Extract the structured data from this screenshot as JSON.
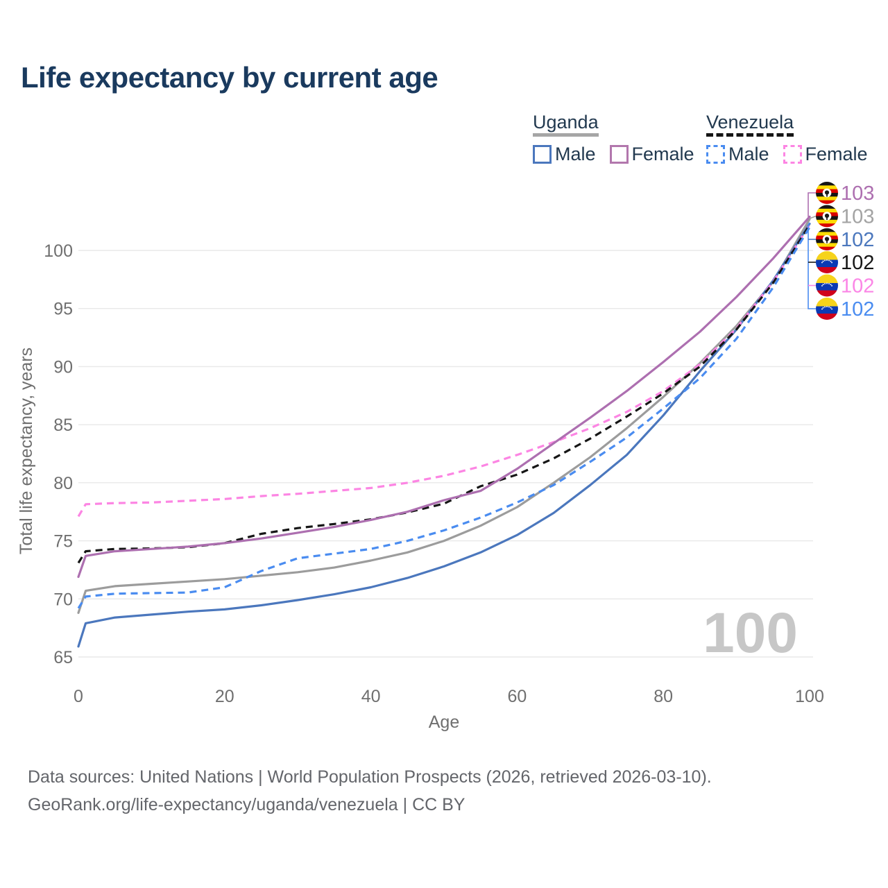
{
  "title": "Life expectancy by current age",
  "legend": {
    "groups": [
      {
        "name": "Uganda",
        "style": "solid",
        "underline_color": "#a6a6a6",
        "items": [
          {
            "label": "Male",
            "color": "#4b77bd",
            "dashed": false
          },
          {
            "label": "Female",
            "color": "#b277ad",
            "dashed": false
          }
        ]
      },
      {
        "name": "Venezuela",
        "style": "dashed",
        "underline_color": "#161616",
        "items": [
          {
            "label": "Male",
            "color": "#4a8cf0",
            "dashed": true
          },
          {
            "label": "Female",
            "color": "#fc85e3",
            "dashed": true
          }
        ]
      }
    ]
  },
  "chart_data": {
    "type": "line",
    "title": "Life expectancy by current age",
    "xlabel": "Age",
    "ylabel": "Total life expectancy, years",
    "xlim": [
      0,
      100
    ],
    "ylim": [
      63.5,
      104.5
    ],
    "xticks": [
      0,
      20,
      40,
      60,
      80,
      100
    ],
    "yticks": [
      65,
      70,
      75,
      80,
      85,
      90,
      95,
      100
    ],
    "grid": "horizontal",
    "gridline_color": "#e8e8e8",
    "watermark": "100",
    "watermark_color": "#c7c7c7",
    "x": [
      0,
      1,
      5,
      10,
      15,
      20,
      25,
      30,
      35,
      40,
      45,
      50,
      55,
      60,
      65,
      70,
      75,
      80,
      85,
      90,
      95,
      100
    ],
    "series": [
      {
        "id": "uganda-all",
        "name": "Uganda",
        "country": "Uganda",
        "sex": "All",
        "color": "#9c9c9c",
        "dashed": false,
        "values": [
          68.8,
          70.7,
          71.1,
          71.3,
          71.5,
          71.7,
          72.0,
          72.3,
          72.7,
          73.3,
          74.0,
          75.0,
          76.3,
          77.9,
          80.0,
          82.2,
          84.7,
          87.4,
          90.3,
          93.5,
          97.3,
          102.7
        ]
      },
      {
        "id": "uganda-male",
        "name": "Uganda Male",
        "country": "Uganda",
        "sex": "Male",
        "color": "#4b77bd",
        "dashed": false,
        "values": [
          65.9,
          67.9,
          68.4,
          68.65,
          68.9,
          69.1,
          69.45,
          69.9,
          70.4,
          71.0,
          71.8,
          72.8,
          74.0,
          75.5,
          77.4,
          79.8,
          82.4,
          85.8,
          89.6,
          93.2,
          97.4,
          102.3
        ]
      },
      {
        "id": "venezuela-female",
        "name": "Venezuela Female",
        "country": "Venezuela",
        "sex": "Female",
        "color": "#fc85e3",
        "dashed": true,
        "values": [
          77.1,
          78.15,
          78.25,
          78.3,
          78.45,
          78.6,
          78.85,
          79.05,
          79.3,
          79.55,
          80.0,
          80.6,
          81.4,
          82.4,
          83.5,
          84.7,
          86.1,
          87.9,
          90.2,
          93.3,
          97.3,
          102.2
        ]
      },
      {
        "id": "venezuela-all",
        "name": "Venezuela",
        "country": "Venezuela",
        "sex": "All",
        "color": "#161616",
        "dashed": true,
        "values": [
          73.1,
          74.1,
          74.3,
          74.35,
          74.45,
          74.8,
          75.6,
          76.1,
          76.45,
          76.85,
          77.45,
          78.2,
          79.7,
          80.7,
          82.1,
          83.8,
          85.7,
          87.7,
          90.0,
          93.2,
          97.2,
          102.2
        ]
      },
      {
        "id": "venezuela-male",
        "name": "Venezuela Male",
        "country": "Venezuela",
        "sex": "Male",
        "color": "#4a8cf0",
        "dashed": true,
        "values": [
          69.2,
          70.2,
          70.45,
          70.5,
          70.55,
          71.0,
          72.4,
          73.5,
          73.9,
          74.3,
          75.0,
          75.9,
          77.0,
          78.3,
          79.8,
          81.8,
          83.9,
          86.4,
          89.0,
          92.4,
          96.8,
          102.0
        ]
      },
      {
        "id": "uganda-female",
        "name": "Uganda Female",
        "country": "Uganda",
        "sex": "Female",
        "color": "#ad6fb0",
        "dashed": false,
        "values": [
          71.9,
          73.7,
          74.1,
          74.3,
          74.5,
          74.8,
          75.2,
          75.7,
          76.2,
          76.8,
          77.5,
          78.5,
          79.3,
          81.2,
          83.4,
          85.6,
          87.9,
          90.4,
          93.0,
          96.0,
          99.3,
          102.9
        ]
      }
    ],
    "end_labels": [
      {
        "series": "Uganda Female",
        "flag": "uganda",
        "value": "103",
        "color": "#ad6fb0"
      },
      {
        "series": "Uganda",
        "flag": "uganda",
        "value": "103",
        "color": "#a3a3a3"
      },
      {
        "series": "Uganda Male",
        "flag": "uganda",
        "value": "102",
        "color": "#4b77bd"
      },
      {
        "series": "Venezuela",
        "flag": "venezuela",
        "value": "102",
        "color": "#161616"
      },
      {
        "series": "Venezuela Female",
        "flag": "venezuela",
        "value": "102",
        "color": "#fb86e6"
      },
      {
        "series": "Venezuela Male",
        "flag": "venezuela",
        "value": "102",
        "color": "#4a8cf0"
      }
    ],
    "flag_colors": {
      "uganda": [
        "#151515",
        "#fcdc04",
        "#d90000"
      ],
      "venezuela": [
        "#f6d31b",
        "#0a3ab4",
        "#d0021b"
      ]
    }
  },
  "footer": {
    "line1": "Data sources: United Nations | World Population Prospects (2026, retrieved 2026-03-10).",
    "line2": "GeoRank.org/life-expectancy/uganda/venezuela | CC BY"
  }
}
